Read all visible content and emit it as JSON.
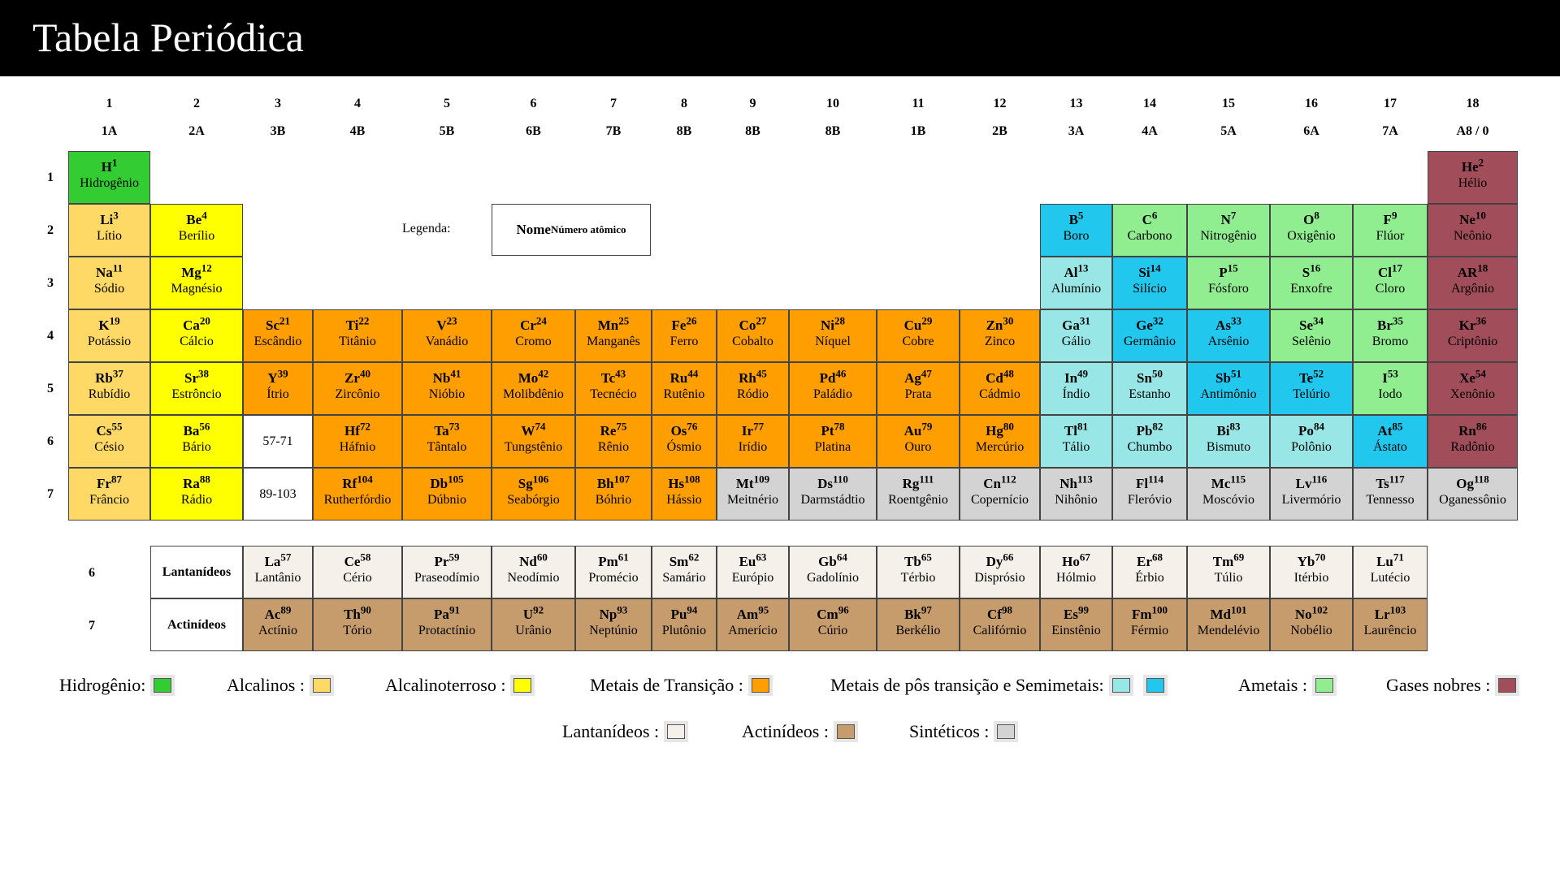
{
  "title": "Tabela Periódica",
  "group_numbers": [
    "1",
    "2",
    "3",
    "4",
    "5",
    "6",
    "7",
    "8",
    "9",
    "10",
    "11",
    "12",
    "13",
    "14",
    "15",
    "16",
    "17",
    "18"
  ],
  "group_labels": [
    "1A",
    "2A",
    "3B",
    "4B",
    "5B",
    "6B",
    "7B",
    "8B",
    "8B",
    "8B",
    "1B",
    "2B",
    "3A",
    "4A",
    "5A",
    "6A",
    "7A",
    "A8 / 0"
  ],
  "period_labels": [
    "1",
    "2",
    "3",
    "4",
    "5",
    "6",
    "7"
  ],
  "colors": {
    "hydrogen": "#33cc33",
    "alkali": "#ffd966",
    "alkaline_earth": "#ffff00",
    "transition": "#ff9e00",
    "post_transition": "#99e6e6",
    "metalloid": "#22c7ee",
    "nonmetal": "#90ee90",
    "noble": "#a14d5a",
    "lanthanide": "#f5f0ea",
    "actinide": "#c69c6d",
    "synthetic": "#d3d3d3"
  },
  "legend_sample": {
    "caption": "Legenda:",
    "name": "Nome",
    "number": "Número atômico"
  },
  "ranges": {
    "lanthanides": "57-71",
    "actinides": "89-103"
  },
  "series_labels": {
    "lanthanides_row": "6",
    "actinides_row": "7",
    "lanthanides": "Lantanídeos",
    "actinides": "Actinídeos"
  },
  "elements": [
    {
      "s": "H",
      "n": 1,
      "name": "Hidrogênio",
      "g": 1,
      "p": 1,
      "c": "hydrogen"
    },
    {
      "s": "He",
      "n": 2,
      "name": "Hélio",
      "g": 18,
      "p": 1,
      "c": "noble"
    },
    {
      "s": "Li",
      "n": 3,
      "name": "Lítio",
      "g": 1,
      "p": 2,
      "c": "alkali"
    },
    {
      "s": "Be",
      "n": 4,
      "name": "Berílio",
      "g": 2,
      "p": 2,
      "c": "alkaline_earth"
    },
    {
      "s": "B",
      "n": 5,
      "name": "Boro",
      "g": 13,
      "p": 2,
      "c": "metalloid"
    },
    {
      "s": "C",
      "n": 6,
      "name": "Carbono",
      "g": 14,
      "p": 2,
      "c": "nonmetal"
    },
    {
      "s": "N",
      "n": 7,
      "name": "Nitrogênio",
      "g": 15,
      "p": 2,
      "c": "nonmetal"
    },
    {
      "s": "O",
      "n": 8,
      "name": "Oxigênio",
      "g": 16,
      "p": 2,
      "c": "nonmetal"
    },
    {
      "s": "F",
      "n": 9,
      "name": "Flúor",
      "g": 17,
      "p": 2,
      "c": "nonmetal"
    },
    {
      "s": "Ne",
      "n": 10,
      "name": "Neônio",
      "g": 18,
      "p": 2,
      "c": "noble"
    },
    {
      "s": "Na",
      "n": 11,
      "name": "Sódio",
      "g": 1,
      "p": 3,
      "c": "alkali"
    },
    {
      "s": "Mg",
      "n": 12,
      "name": "Magnésio",
      "g": 2,
      "p": 3,
      "c": "alkaline_earth"
    },
    {
      "s": "Al",
      "n": 13,
      "name": "Alumínio",
      "g": 13,
      "p": 3,
      "c": "post_transition"
    },
    {
      "s": "Si",
      "n": 14,
      "name": "Silício",
      "g": 14,
      "p": 3,
      "c": "metalloid"
    },
    {
      "s": "P",
      "n": 15,
      "name": "Fósforo",
      "g": 15,
      "p": 3,
      "c": "nonmetal"
    },
    {
      "s": "S",
      "n": 16,
      "name": "Enxofre",
      "g": 16,
      "p": 3,
      "c": "nonmetal"
    },
    {
      "s": "Cl",
      "n": 17,
      "name": "Cloro",
      "g": 17,
      "p": 3,
      "c": "nonmetal"
    },
    {
      "s": "AR",
      "n": 18,
      "name": "Argônio",
      "g": 18,
      "p": 3,
      "c": "noble"
    },
    {
      "s": "K",
      "n": 19,
      "name": "Potássio",
      "g": 1,
      "p": 4,
      "c": "alkali"
    },
    {
      "s": "Ca",
      "n": 20,
      "name": "Cálcio",
      "g": 2,
      "p": 4,
      "c": "alkaline_earth"
    },
    {
      "s": "Sc",
      "n": 21,
      "name": "Escândio",
      "g": 3,
      "p": 4,
      "c": "transition"
    },
    {
      "s": "Ti",
      "n": 22,
      "name": "Titânio",
      "g": 4,
      "p": 4,
      "c": "transition"
    },
    {
      "s": "V",
      "n": 23,
      "name": "Vanádio",
      "g": 5,
      "p": 4,
      "c": "transition"
    },
    {
      "s": "Cr",
      "n": 24,
      "name": "Cromo",
      "g": 6,
      "p": 4,
      "c": "transition"
    },
    {
      "s": "Mn",
      "n": 25,
      "name": "Manganês",
      "g": 7,
      "p": 4,
      "c": "transition"
    },
    {
      "s": "Fe",
      "n": 26,
      "name": "Ferro",
      "g": 8,
      "p": 4,
      "c": "transition"
    },
    {
      "s": "Co",
      "n": 27,
      "name": "Cobalto",
      "g": 9,
      "p": 4,
      "c": "transition"
    },
    {
      "s": "Ni",
      "n": 28,
      "name": "Níquel",
      "g": 10,
      "p": 4,
      "c": "transition"
    },
    {
      "s": "Cu",
      "n": 29,
      "name": "Cobre",
      "g": 11,
      "p": 4,
      "c": "transition"
    },
    {
      "s": "Zn",
      "n": 30,
      "name": "Zinco",
      "g": 12,
      "p": 4,
      "c": "transition"
    },
    {
      "s": "Ga",
      "n": 31,
      "name": "Gálio",
      "g": 13,
      "p": 4,
      "c": "post_transition"
    },
    {
      "s": "Ge",
      "n": 32,
      "name": "Germânio",
      "g": 14,
      "p": 4,
      "c": "metalloid"
    },
    {
      "s": "As",
      "n": 33,
      "name": "Arsênio",
      "g": 15,
      "p": 4,
      "c": "metalloid"
    },
    {
      "s": "Se",
      "n": 34,
      "name": "Selênio",
      "g": 16,
      "p": 4,
      "c": "nonmetal"
    },
    {
      "s": "Br",
      "n": 35,
      "name": "Bromo",
      "g": 17,
      "p": 4,
      "c": "nonmetal"
    },
    {
      "s": "Kr",
      "n": 36,
      "name": "Criptônio",
      "g": 18,
      "p": 4,
      "c": "noble"
    },
    {
      "s": "Rb",
      "n": 37,
      "name": "Rubídio",
      "g": 1,
      "p": 5,
      "c": "alkali"
    },
    {
      "s": "Sr",
      "n": 38,
      "name": "Estrôncio",
      "g": 2,
      "p": 5,
      "c": "alkaline_earth"
    },
    {
      "s": "Y",
      "n": 39,
      "name": "Ítrio",
      "g": 3,
      "p": 5,
      "c": "transition"
    },
    {
      "s": "Zr",
      "n": 40,
      "name": "Zircônio",
      "g": 4,
      "p": 5,
      "c": "transition"
    },
    {
      "s": "Nb",
      "n": 41,
      "name": "Nióbio",
      "g": 5,
      "p": 5,
      "c": "transition"
    },
    {
      "s": "Mo",
      "n": 42,
      "name": "Molibdênio",
      "g": 6,
      "p": 5,
      "c": "transition"
    },
    {
      "s": "Tc",
      "n": 43,
      "name": "Tecnécio",
      "g": 7,
      "p": 5,
      "c": "transition"
    },
    {
      "s": "Ru",
      "n": 44,
      "name": "Rutênio",
      "g": 8,
      "p": 5,
      "c": "transition"
    },
    {
      "s": "Rh",
      "n": 45,
      "name": "Ródio",
      "g": 9,
      "p": 5,
      "c": "transition"
    },
    {
      "s": "Pd",
      "n": 46,
      "name": "Paládio",
      "g": 10,
      "p": 5,
      "c": "transition"
    },
    {
      "s": "Ag",
      "n": 47,
      "name": "Prata",
      "g": 11,
      "p": 5,
      "c": "transition"
    },
    {
      "s": "Cd",
      "n": 48,
      "name": "Cádmio",
      "g": 12,
      "p": 5,
      "c": "transition"
    },
    {
      "s": "In",
      "n": 49,
      "name": "Índio",
      "g": 13,
      "p": 5,
      "c": "post_transition"
    },
    {
      "s": "Sn",
      "n": 50,
      "name": "Estanho",
      "g": 14,
      "p": 5,
      "c": "post_transition"
    },
    {
      "s": "Sb",
      "n": 51,
      "name": "Antimônio",
      "g": 15,
      "p": 5,
      "c": "metalloid"
    },
    {
      "s": "Te",
      "n": 52,
      "name": "Telúrio",
      "g": 16,
      "p": 5,
      "c": "metalloid"
    },
    {
      "s": "I",
      "n": 53,
      "name": "Iodo",
      "g": 17,
      "p": 5,
      "c": "nonmetal"
    },
    {
      "s": "Xe",
      "n": 54,
      "name": "Xenônio",
      "g": 18,
      "p": 5,
      "c": "noble"
    },
    {
      "s": "Cs",
      "n": 55,
      "name": "Césio",
      "g": 1,
      "p": 6,
      "c": "alkali"
    },
    {
      "s": "Ba",
      "n": 56,
      "name": "Bário",
      "g": 2,
      "p": 6,
      "c": "alkaline_earth"
    },
    {
      "s": "Hf",
      "n": 72,
      "name": "Háfnio",
      "g": 4,
      "p": 6,
      "c": "transition"
    },
    {
      "s": "Ta",
      "n": 73,
      "name": "Tântalo",
      "g": 5,
      "p": 6,
      "c": "transition"
    },
    {
      "s": "W",
      "n": 74,
      "name": "Tungstênio",
      "g": 6,
      "p": 6,
      "c": "transition"
    },
    {
      "s": "Re",
      "n": 75,
      "name": "Rênio",
      "g": 7,
      "p": 6,
      "c": "transition"
    },
    {
      "s": "Os",
      "n": 76,
      "name": "Ósmio",
      "g": 8,
      "p": 6,
      "c": "transition"
    },
    {
      "s": "Ir",
      "n": 77,
      "name": "Irídio",
      "g": 9,
      "p": 6,
      "c": "transition"
    },
    {
      "s": "Pt",
      "n": 78,
      "name": "Platina",
      "g": 10,
      "p": 6,
      "c": "transition"
    },
    {
      "s": "Au",
      "n": 79,
      "name": "Ouro",
      "g": 11,
      "p": 6,
      "c": "transition"
    },
    {
      "s": "Hg",
      "n": 80,
      "name": "Mercúrio",
      "g": 12,
      "p": 6,
      "c": "transition"
    },
    {
      "s": "Tl",
      "n": 81,
      "name": "Tálio",
      "g": 13,
      "p": 6,
      "c": "post_transition"
    },
    {
      "s": "Pb",
      "n": 82,
      "name": "Chumbo",
      "g": 14,
      "p": 6,
      "c": "post_transition"
    },
    {
      "s": "Bi",
      "n": 83,
      "name": "Bismuto",
      "g": 15,
      "p": 6,
      "c": "post_transition"
    },
    {
      "s": "Po",
      "n": 84,
      "name": "Polônio",
      "g": 16,
      "p": 6,
      "c": "post_transition"
    },
    {
      "s": "At",
      "n": 85,
      "name": "Ástato",
      "g": 17,
      "p": 6,
      "c": "metalloid"
    },
    {
      "s": "Rn",
      "n": 86,
      "name": "Radônio",
      "g": 18,
      "p": 6,
      "c": "noble"
    },
    {
      "s": "Fr",
      "n": 87,
      "name": "Frâncio",
      "g": 1,
      "p": 7,
      "c": "alkali"
    },
    {
      "s": "Ra",
      "n": 88,
      "name": "Rádio",
      "g": 2,
      "p": 7,
      "c": "alkaline_earth"
    },
    {
      "s": "Rf",
      "n": 104,
      "name": "Rutherfórdio",
      "g": 4,
      "p": 7,
      "c": "transition"
    },
    {
      "s": "Db",
      "n": 105,
      "name": "Dúbnio",
      "g": 5,
      "p": 7,
      "c": "transition"
    },
    {
      "s": "Sg",
      "n": 106,
      "name": "Seabórgio",
      "g": 6,
      "p": 7,
      "c": "transition"
    },
    {
      "s": "Bh",
      "n": 107,
      "name": "Bóhrio",
      "g": 7,
      "p": 7,
      "c": "transition"
    },
    {
      "s": "Hs",
      "n": 108,
      "name": "Hássio",
      "g": 8,
      "p": 7,
      "c": "transition"
    },
    {
      "s": "Mt",
      "n": 109,
      "name": "Meitnério",
      "g": 9,
      "p": 7,
      "c": "synthetic"
    },
    {
      "s": "Ds",
      "n": 110,
      "name": "Darmstádtio",
      "g": 10,
      "p": 7,
      "c": "synthetic"
    },
    {
      "s": "Rg",
      "n": 111,
      "name": "Roentgênio",
      "g": 11,
      "p": 7,
      "c": "synthetic"
    },
    {
      "s": "Cn",
      "n": 112,
      "name": "Copernício",
      "g": 12,
      "p": 7,
      "c": "synthetic"
    },
    {
      "s": "Nh",
      "n": 113,
      "name": "Nihônio",
      "g": 13,
      "p": 7,
      "c": "synthetic"
    },
    {
      "s": "Fl",
      "n": 114,
      "name": "Fleróvio",
      "g": 14,
      "p": 7,
      "c": "synthetic"
    },
    {
      "s": "Mc",
      "n": 115,
      "name": "Moscóvio",
      "g": 15,
      "p": 7,
      "c": "synthetic"
    },
    {
      "s": "Lv",
      "n": 116,
      "name": "Livermório",
      "g": 16,
      "p": 7,
      "c": "synthetic"
    },
    {
      "s": "Ts",
      "n": 117,
      "name": "Tennesso",
      "g": 17,
      "p": 7,
      "c": "synthetic"
    },
    {
      "s": "Og",
      "n": 118,
      "name": "Oganessônio",
      "g": 18,
      "p": 7,
      "c": "synthetic"
    }
  ],
  "lanthanides": [
    {
      "s": "La",
      "n": 57,
      "name": "Lantânio"
    },
    {
      "s": "Ce",
      "n": 58,
      "name": "Cério"
    },
    {
      "s": "Pr",
      "n": 59,
      "name": "Praseodímio"
    },
    {
      "s": "Nd",
      "n": 60,
      "name": "Neodímio"
    },
    {
      "s": "Pm",
      "n": 61,
      "name": "Promécio"
    },
    {
      "s": "Sm",
      "n": 62,
      "name": "Samário"
    },
    {
      "s": "Eu",
      "n": 63,
      "name": "Európio"
    },
    {
      "s": "Gb",
      "n": 64,
      "name": "Gadolínio"
    },
    {
      "s": "Tb",
      "n": 65,
      "name": "Térbio"
    },
    {
      "s": "Dy",
      "n": 66,
      "name": "Disprósio"
    },
    {
      "s": "Ho",
      "n": 67,
      "name": "Hólmio"
    },
    {
      "s": "Er",
      "n": 68,
      "name": "Érbio"
    },
    {
      "s": "Tm",
      "n": 69,
      "name": "Túlio"
    },
    {
      "s": "Yb",
      "n": 70,
      "name": "Itérbio"
    },
    {
      "s": "Lu",
      "n": 71,
      "name": "Lutécio"
    }
  ],
  "actinides": [
    {
      "s": "Ac",
      "n": 89,
      "name": "Actínio"
    },
    {
      "s": "Th",
      "n": 90,
      "name": "Tório"
    },
    {
      "s": "Pa",
      "n": 91,
      "name": "Protactínio"
    },
    {
      "s": "U",
      "n": 92,
      "name": "Urânio"
    },
    {
      "s": "Np",
      "n": 93,
      "name": "Neptúnio"
    },
    {
      "s": "Pu",
      "n": 94,
      "name": "Plutônio"
    },
    {
      "s": "Am",
      "n": 95,
      "name": "Amerício"
    },
    {
      "s": "Cm",
      "n": 96,
      "name": "Cúrio"
    },
    {
      "s": "Bk",
      "n": 97,
      "name": "Berkélio"
    },
    {
      "s": "Cf",
      "n": 98,
      "name": "Califórnio"
    },
    {
      "s": "Es",
      "n": 99,
      "name": "Einstênio"
    },
    {
      "s": "Fm",
      "n": 100,
      "name": "Férmio"
    },
    {
      "s": "Md",
      "n": 101,
      "name": "Mendelévio"
    },
    {
      "s": "No",
      "n": 102,
      "name": "Nobélio"
    },
    {
      "s": "Lr",
      "n": 103,
      "name": "Laurêncio"
    }
  ],
  "key_row1": [
    {
      "label": "Hidrogênio:",
      "colors": [
        "hydrogen"
      ]
    },
    {
      "label": "Alcalinos :",
      "colors": [
        "alkali"
      ]
    },
    {
      "label": "Alcalinoterroso :",
      "colors": [
        "alkaline_earth"
      ]
    },
    {
      "label": "Metais de Transição :",
      "colors": [
        "transition"
      ]
    },
    {
      "label": "Metais de pôs transição e Semimetais:",
      "colors": [
        "post_transition",
        "metalloid"
      ]
    },
    {
      "label": "Ametais :",
      "colors": [
        "nonmetal"
      ]
    },
    {
      "label": "Gases nobres :",
      "colors": [
        "noble"
      ]
    }
  ],
  "key_row2": [
    {
      "label": "Lantanídeos :",
      "colors": [
        "lanthanide"
      ]
    },
    {
      "label": "Actinídeos :",
      "colors": [
        "actinide"
      ]
    },
    {
      "label": "Sintéticos :",
      "colors": [
        "synthetic"
      ]
    }
  ]
}
